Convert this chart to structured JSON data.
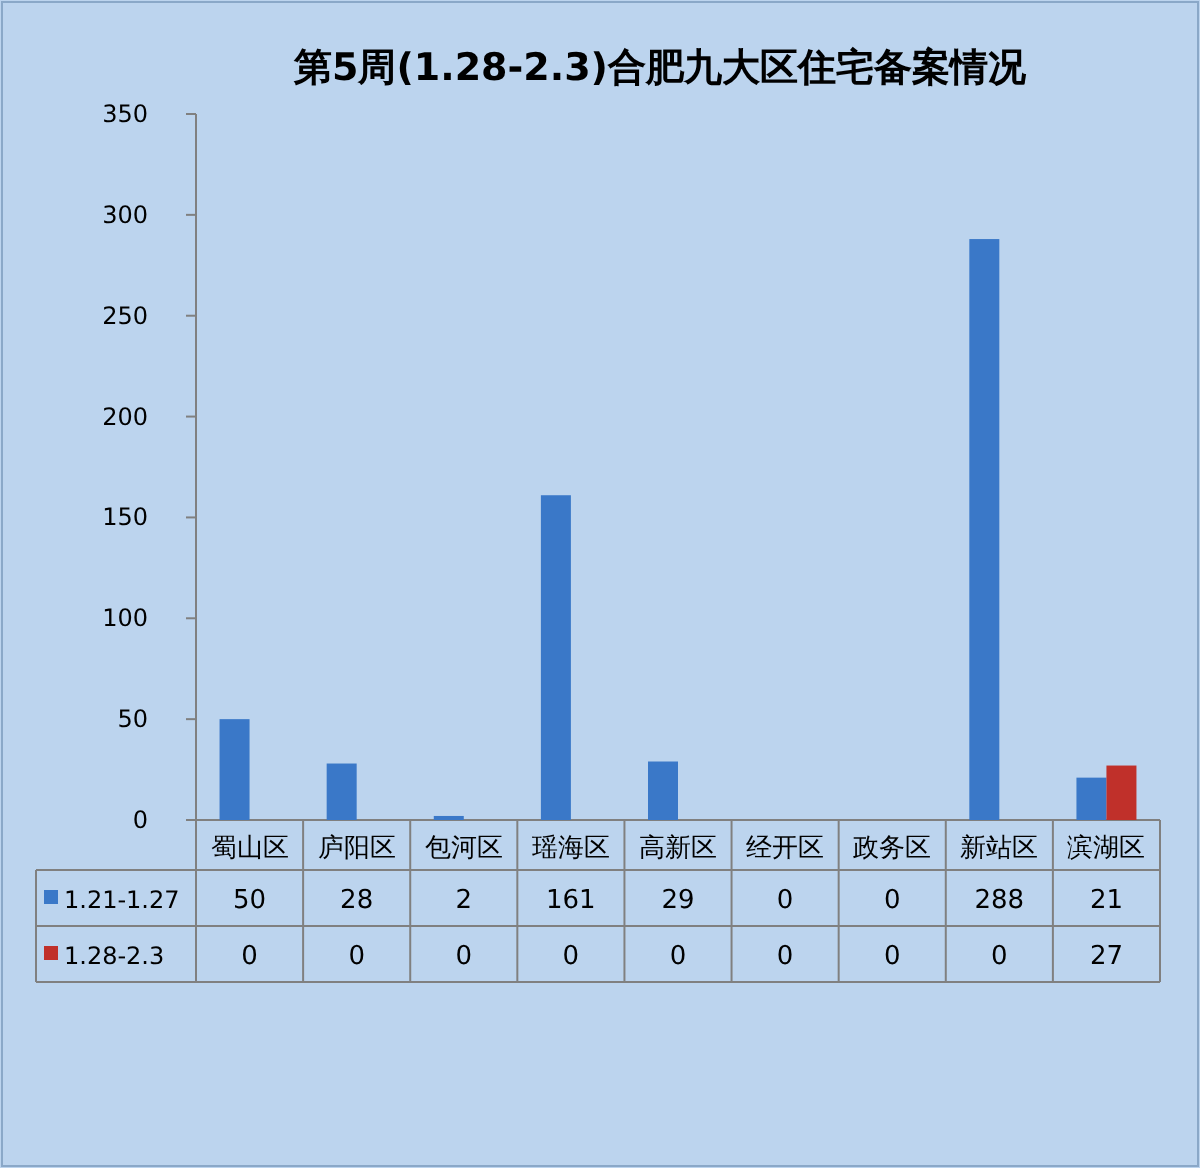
{
  "chart_data": {
    "type": "bar",
    "title": "第5周(1.28-2.3)合肥九大区住宅备案情况",
    "categories": [
      "蜀山区",
      "庐阳区",
      "包河区",
      "瑶海区",
      "高新区",
      "经开区",
      "政务区",
      "新站区",
      "滨湖区"
    ],
    "series": [
      {
        "name": "1.21-1.27",
        "color": "#3a78c8",
        "values": [
          50,
          28,
          2,
          161,
          29,
          0,
          0,
          288,
          21
        ]
      },
      {
        "name": "1.28-2.3",
        "color": "#c0302a",
        "values": [
          0,
          0,
          0,
          0,
          0,
          0,
          0,
          0,
          27
        ]
      }
    ],
    "ylim": [
      0,
      350
    ],
    "yticks": [
      0,
      50,
      100,
      150,
      200,
      250,
      300,
      350
    ],
    "data_labels": true,
    "legend": "bottom"
  }
}
